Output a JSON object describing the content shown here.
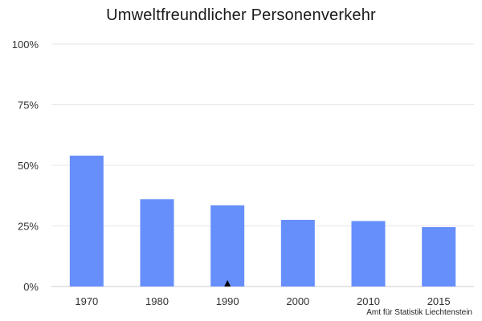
{
  "header": {
    "title": "Umweltfreundlicher Personenverkehr"
  },
  "footer": {
    "source": "Amt für Statistik Liechtenstein"
  },
  "chart_data": {
    "type": "bar",
    "title": "Umweltfreundlicher Personenverkehr",
    "categories": [
      "1970",
      "1980",
      "1990",
      "2000",
      "2010",
      "2015"
    ],
    "values": [
      54,
      36,
      33.5,
      27.5,
      27,
      24.5
    ],
    "value_unit": "%",
    "ylim": [
      0,
      100
    ],
    "yticks": [
      "0%",
      "25%",
      "50%",
      "75%",
      "100%"
    ],
    "ytick_values": [
      0,
      25,
      50,
      75,
      100
    ],
    "xlabel": "",
    "ylabel": "",
    "grid": true,
    "legend": "none",
    "marker_category": "1990",
    "colors": {
      "bar": "#668ffc",
      "grid": "#e6e6e6",
      "axis": "#cccccc",
      "marker": "#000000"
    }
  }
}
